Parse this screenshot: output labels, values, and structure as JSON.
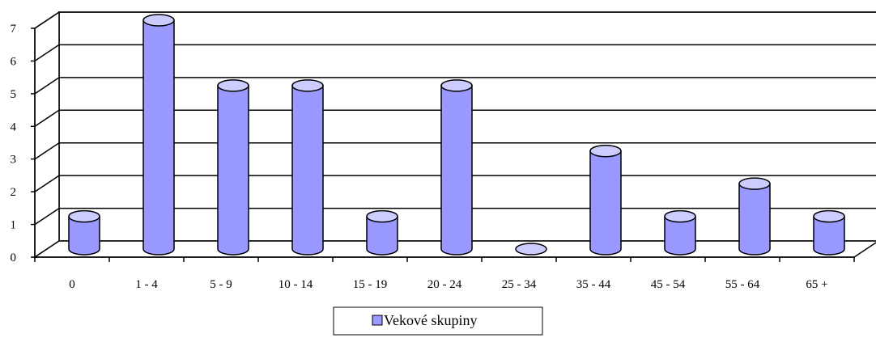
{
  "chart_data": {
    "type": "bar",
    "style": "3d-cylinder",
    "categories": [
      "0",
      "1 - 4",
      "5 - 9",
      "10 - 14",
      "15 - 19",
      "20 - 24",
      "25 - 34",
      "35 - 44",
      "45 - 54",
      "55 - 64",
      "65 +"
    ],
    "series": [
      {
        "name": "Vekové skupiny",
        "values": [
          1,
          7,
          5,
          5,
          1,
          5,
          0,
          3,
          1,
          2,
          1
        ]
      }
    ],
    "ylim": [
      0,
      7
    ],
    "yticks": [
      "0",
      "1",
      "2",
      "3",
      "4",
      "5",
      "6",
      "7"
    ],
    "grid": true,
    "legend_position": "bottom",
    "colors": {
      "bar_fill": "#9999ff",
      "bar_top": "#ccccff",
      "bar_outline": "#000000"
    }
  }
}
